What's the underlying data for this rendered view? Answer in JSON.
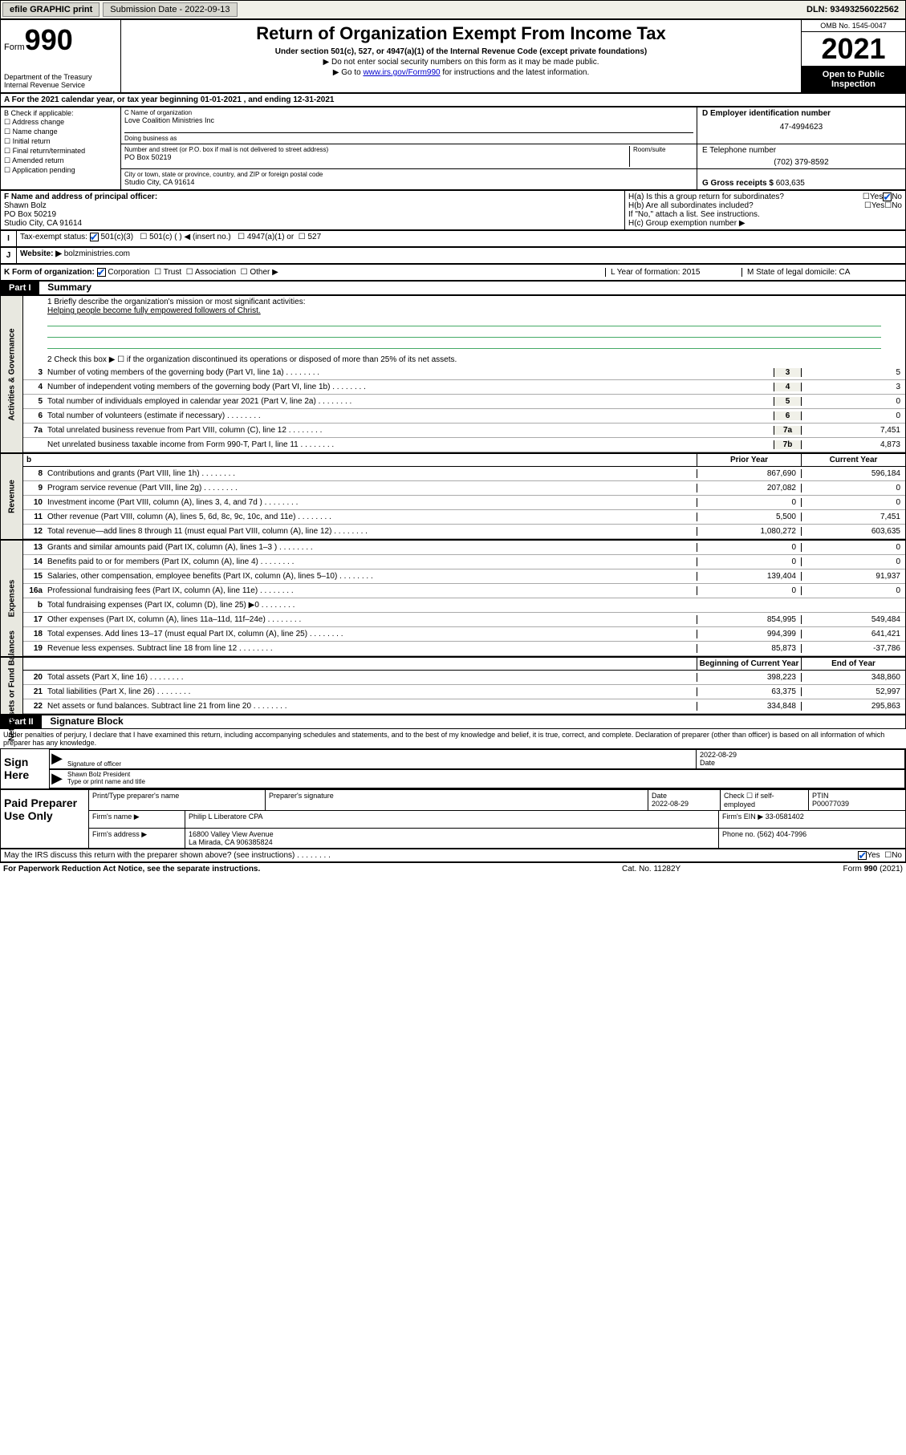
{
  "top_bar": {
    "efile_label": "efile GRAPHIC print",
    "submission_label": "Submission Date - 2022-09-13",
    "dln": "DLN: 93493256022562"
  },
  "header": {
    "form_word": "Form",
    "form_num": "990",
    "dept": "Department of the Treasury",
    "irs": "Internal Revenue Service",
    "title": "Return of Organization Exempt From Income Tax",
    "subtitle": "Under section 501(c), 527, or 4947(a)(1) of the Internal Revenue Code (except private foundations)",
    "note1": "▶ Do not enter social security numbers on this form as it may be made public.",
    "note2_pre": "▶ Go to ",
    "note2_link": "www.irs.gov/Form990",
    "note2_post": " for instructions and the latest information.",
    "omb": "OMB No. 1545-0047",
    "year": "2021",
    "inspection": "Open to Public Inspection"
  },
  "row_a": "A For the 2021 calendar year, or tax year beginning 01-01-2021    , and ending 12-31-2021",
  "section_b": {
    "label": "B Check if applicable:",
    "opts": [
      "Address change",
      "Name change",
      "Initial return",
      "Final return/terminated",
      "Amended return",
      "Application pending"
    ]
  },
  "section_c": {
    "name_label": "C Name of organization",
    "name": "Love Coalition Ministries Inc",
    "dba_label": "Doing business as",
    "addr_label": "Number and street (or P.O. box if mail is not delivered to street address)",
    "room_label": "Room/suite",
    "addr": "PO Box 50219",
    "city_label": "City or town, state or province, country, and ZIP or foreign postal code",
    "city": "Studio City, CA  91614"
  },
  "section_d": {
    "ein_label": "D Employer identification number",
    "ein": "47-4994623",
    "phone_label": "E Telephone number",
    "phone": "(702) 379-8592",
    "gross_label": "G Gross receipts $",
    "gross": "603,635"
  },
  "section_f": {
    "label": "F Name and address of principal officer:",
    "name": "Shawn Bolz",
    "addr1": "PO Box 50219",
    "addr2": "Studio City, CA  91614"
  },
  "section_h": {
    "ha": "H(a)  Is this a group return for subordinates?",
    "hb": "H(b)  Are all subordinates included?",
    "hb_note": "If \"No,\" attach a list. See instructions.",
    "hc": "H(c)  Group exemption number ▶",
    "yes": "Yes",
    "no": "No"
  },
  "row_i": {
    "label": "Tax-exempt status:",
    "opt1": "501(c)(3)",
    "opt2": "501(c) (   ) ◀ (insert no.)",
    "opt3": "4947(a)(1) or",
    "opt4": "527"
  },
  "row_j": {
    "label": "Website: ▶",
    "val": "bolzministries.com"
  },
  "row_k": {
    "label": "K Form of organization:",
    "opts": [
      "Corporation",
      "Trust",
      "Association",
      "Other ▶"
    ],
    "l": "L Year of formation: 2015",
    "m": "M State of legal domicile: CA"
  },
  "part1": {
    "hdr": "Part I",
    "title": "Summary"
  },
  "mission": {
    "q1": "1   Briefly describe the organization's mission or most significant activities:",
    "text": "Helping people become fully empowered followers of Christ.",
    "q2": "2   Check this box ▶ ☐  if the organization discontinued its operations or disposed of more than 25% of its net assets."
  },
  "gov_rows": [
    {
      "n": "3",
      "d": "Number of voting members of the governing body (Part VI, line 1a)",
      "b": "3",
      "v": "5"
    },
    {
      "n": "4",
      "d": "Number of independent voting members of the governing body (Part VI, line 1b)",
      "b": "4",
      "v": "3"
    },
    {
      "n": "5",
      "d": "Total number of individuals employed in calendar year 2021 (Part V, line 2a)",
      "b": "5",
      "v": "0"
    },
    {
      "n": "6",
      "d": "Total number of volunteers (estimate if necessary)",
      "b": "6",
      "v": "0"
    },
    {
      "n": "7a",
      "d": "Total unrelated business revenue from Part VIII, column (C), line 12",
      "b": "7a",
      "v": "7,451"
    },
    {
      "n": "",
      "d": "Net unrelated business taxable income from Form 990-T, Part I, line 11",
      "b": "7b",
      "v": "4,873"
    }
  ],
  "col_heads": {
    "b": "b",
    "prior": "Prior Year",
    "current": "Current Year",
    "boy": "Beginning of Current Year",
    "eoy": "End of Year"
  },
  "rev_rows": [
    {
      "n": "8",
      "d": "Contributions and grants (Part VIII, line 1h)",
      "p": "867,690",
      "c": "596,184"
    },
    {
      "n": "9",
      "d": "Program service revenue (Part VIII, line 2g)",
      "p": "207,082",
      "c": "0"
    },
    {
      "n": "10",
      "d": "Investment income (Part VIII, column (A), lines 3, 4, and 7d )",
      "p": "0",
      "c": "0"
    },
    {
      "n": "11",
      "d": "Other revenue (Part VIII, column (A), lines 5, 6d, 8c, 9c, 10c, and 11e)",
      "p": "5,500",
      "c": "7,451"
    },
    {
      "n": "12",
      "d": "Total revenue—add lines 8 through 11 (must equal Part VIII, column (A), line 12)",
      "p": "1,080,272",
      "c": "603,635"
    }
  ],
  "exp_rows": [
    {
      "n": "13",
      "d": "Grants and similar amounts paid (Part IX, column (A), lines 1–3 )",
      "p": "0",
      "c": "0"
    },
    {
      "n": "14",
      "d": "Benefits paid to or for members (Part IX, column (A), line 4)",
      "p": "0",
      "c": "0"
    },
    {
      "n": "15",
      "d": "Salaries, other compensation, employee benefits (Part IX, column (A), lines 5–10)",
      "p": "139,404",
      "c": "91,937"
    },
    {
      "n": "16a",
      "d": "Professional fundraising fees (Part IX, column (A), line 11e)",
      "p": "0",
      "c": "0"
    },
    {
      "n": "b",
      "d": "Total fundraising expenses (Part IX, column (D), line 25) ▶0",
      "p": "",
      "c": "",
      "shaded": true
    },
    {
      "n": "17",
      "d": "Other expenses (Part IX, column (A), lines 11a–11d, 11f–24e)",
      "p": "854,995",
      "c": "549,484"
    },
    {
      "n": "18",
      "d": "Total expenses. Add lines 13–17 (must equal Part IX, column (A), line 25)",
      "p": "994,399",
      "c": "641,421"
    },
    {
      "n": "19",
      "d": "Revenue less expenses. Subtract line 18 from line 12",
      "p": "85,873",
      "c": "-37,786"
    }
  ],
  "net_rows": [
    {
      "n": "20",
      "d": "Total assets (Part X, line 16)",
      "p": "398,223",
      "c": "348,860"
    },
    {
      "n": "21",
      "d": "Total liabilities (Part X, line 26)",
      "p": "63,375",
      "c": "52,997"
    },
    {
      "n": "22",
      "d": "Net assets or fund balances. Subtract line 21 from line 20",
      "p": "334,848",
      "c": "295,863"
    }
  ],
  "side_labels": {
    "gov": "Activities & Governance",
    "rev": "Revenue",
    "exp": "Expenses",
    "net": "Net Assets or Fund Balances"
  },
  "part2": {
    "hdr": "Part II",
    "title": "Signature Block"
  },
  "sig": {
    "decl": "Under penalties of perjury, I declare that I have examined this return, including accompanying schedules and statements, and to the best of my knowledge and belief, it is true, correct, and complete. Declaration of preparer (other than officer) is based on all information of which preparer has any knowledge.",
    "sign_here": "Sign Here",
    "sig_officer": "Signature of officer",
    "date": "2022-08-29",
    "date_label": "Date",
    "name": "Shawn Bolz  President",
    "name_label": "Type or print name and title"
  },
  "paid": {
    "label": "Paid Preparer Use Only",
    "h1": "Print/Type preparer's name",
    "h2": "Preparer's signature",
    "h3": "Date",
    "h3v": "2022-08-29",
    "h4": "Check ☐ if self-employed",
    "h5": "PTIN",
    "h5v": "P00077039",
    "firm_name_l": "Firm's name    ▶",
    "firm_name": "Philip L Liberatore CPA",
    "firm_ein_l": "Firm's EIN ▶",
    "firm_ein": "33-0581402",
    "firm_addr_l": "Firm's address ▶",
    "firm_addr1": "16800 Valley View Avenue",
    "firm_addr2": "La Mirada, CA  906385824",
    "phone_l": "Phone no.",
    "phone": "(562) 404-7996"
  },
  "discuss": {
    "q": "May the IRS discuss this return with the preparer shown above? (see instructions)",
    "yes": "Yes",
    "no": "No"
  },
  "footer": {
    "l": "For Paperwork Reduction Act Notice, see the separate instructions.",
    "m": "Cat. No. 11282Y",
    "r": "Form 990 (2021)"
  }
}
